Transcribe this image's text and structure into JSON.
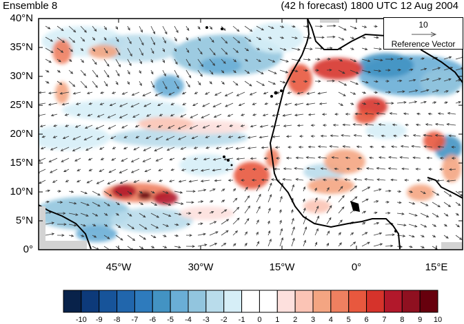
{
  "title": {
    "left": "Ensemble 8",
    "right": "(42 h forecast) 1800 UTC 12 Aug 2004"
  },
  "reference_vector": {
    "magnitude": "10",
    "label": "Reference Vector"
  },
  "axes": {
    "y_ticks": [
      "40°N",
      "35°N",
      "30°N",
      "25°N",
      "20°N",
      "15°N",
      "10°N",
      "5°N",
      "0°"
    ],
    "x_ticks": [
      "45°W",
      "30°W",
      "15°W",
      "0°",
      "15°E"
    ]
  },
  "colorbar": {
    "labels": [
      "-10",
      "-9",
      "-8",
      "-7",
      "-6",
      "-5",
      "-4",
      "-3",
      "-2",
      "-1",
      "0",
      "1",
      "2",
      "3",
      "4",
      "5",
      "6",
      "7",
      "8",
      "9",
      "10"
    ],
    "colors": [
      "#08224a",
      "#0d3a7a",
      "#17549a",
      "#2166ac",
      "#2e7bbd",
      "#4393c3",
      "#6aaed6",
      "#92c5de",
      "#b9dceb",
      "#d6eef7",
      "#ffffff",
      "#ffffff",
      "#fde0dd",
      "#fbc4b5",
      "#f4a582",
      "#ef8060",
      "#e8583e",
      "#d6332b",
      "#b2182b",
      "#8f1020",
      "#67000d"
    ]
  },
  "map": {
    "lon_range": [
      -57,
      20
    ],
    "lat_range": [
      0,
      40
    ],
    "field": "Shaded anomaly with wind vectors"
  }
}
